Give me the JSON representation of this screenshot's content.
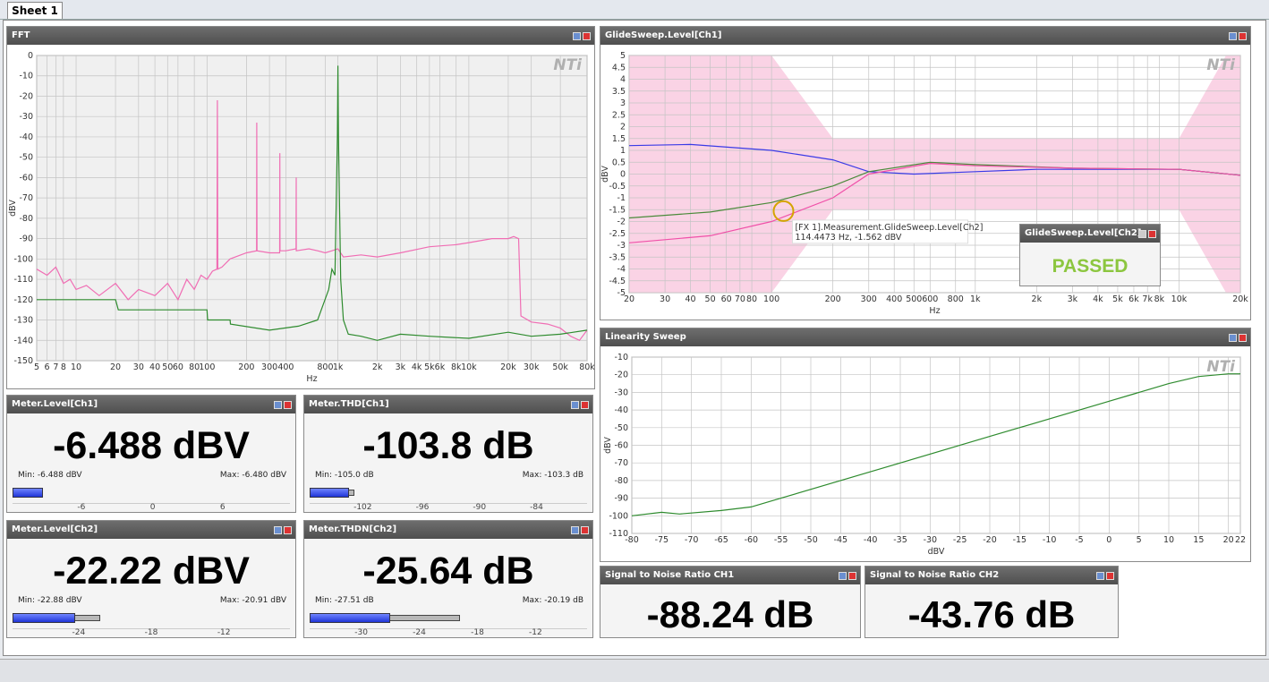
{
  "tab": "Sheet 1",
  "logo": "NTi",
  "fft": {
    "title": "FFT",
    "xlabel": "Hz",
    "ylabel": "dBV",
    "xlog": true,
    "xlim": [
      5,
      80000
    ],
    "ylim": [
      -150,
      0
    ],
    "xticks": [
      5,
      6,
      7,
      8,
      10,
      20,
      30,
      40,
      50,
      60,
      80,
      100,
      200,
      300,
      400,
      800,
      {
        "value": 1000,
        "label": "1k"
      },
      {
        "value": 2000,
        "label": "2k"
      },
      {
        "value": 3000,
        "label": "3k"
      },
      {
        "value": 4000,
        "label": "4k"
      },
      {
        "value": 5000,
        "label": "5k"
      },
      {
        "value": 6000,
        "label": "6k"
      },
      {
        "value": 8000,
        "label": "8k"
      },
      {
        "value": 10000,
        "label": "10k"
      },
      {
        "value": 20000,
        "label": "20k"
      },
      {
        "value": 30000,
        "label": "30k"
      },
      {
        "value": 50000,
        "label": "50k"
      },
      {
        "value": 80000,
        "label": "80k"
      }
    ],
    "yticks": [
      0,
      -10,
      -20,
      -30,
      -40,
      -50,
      -60,
      -70,
      -80,
      -90,
      -100,
      -110,
      -120,
      -130,
      -140,
      -150
    ],
    "series": [
      {
        "color": "#f06eb4",
        "x": [
          5,
          6,
          7,
          8,
          9,
          10,
          12,
          15,
          20,
          25,
          30,
          40,
          50,
          60,
          70,
          80,
          90,
          100,
          110,
          119,
          120,
          121,
          130,
          150,
          200,
          239,
          240,
          241,
          300,
          359,
          360,
          361,
          400,
          479,
          480,
          481,
          600,
          700,
          800,
          900,
          1000,
          1100,
          1500,
          2000,
          3000,
          5000,
          8000,
          10000,
          15000,
          20000,
          22000,
          24000,
          25000,
          30000,
          40000,
          50000,
          60000,
          70000,
          80000
        ],
        "y": [
          -105,
          -108,
          -104,
          -112,
          -110,
          -115,
          -113,
          -118,
          -112,
          -120,
          -115,
          -118,
          -112,
          -120,
          -110,
          -115,
          -108,
          -110,
          -106,
          -105,
          -22,
          -105,
          -104,
          -100,
          -97,
          -96,
          -33,
          -96,
          -97,
          -97,
          -48,
          -96,
          -96,
          -95,
          -60,
          -96,
          -95,
          -96,
          -97,
          -96,
          -95,
          -99,
          -98,
          -99,
          -97,
          -94,
          -93,
          -92,
          -90,
          -90,
          -89,
          -90,
          -128,
          -131,
          -132,
          -134,
          -138,
          -140,
          -135
        ]
      },
      {
        "color": "#2e8b2e",
        "x": [
          5,
          20,
          21,
          100,
          101,
          150,
          151,
          300,
          500,
          700,
          850,
          900,
          950,
          990,
          1000,
          1010,
          1050,
          1100,
          1200,
          1500,
          2000,
          3000,
          5000,
          10000,
          20000,
          30000,
          50000,
          80000
        ],
        "y": [
          -120,
          -120,
          -125,
          -125,
          -130,
          -130,
          -132,
          -135,
          -133,
          -130,
          -115,
          -105,
          -108,
          -40,
          -5,
          -40,
          -110,
          -130,
          -137,
          -138,
          -140,
          -137,
          -138,
          -139,
          -136,
          -138,
          -137,
          -135
        ]
      }
    ]
  },
  "glide": {
    "title": "GlideSweep.Level[Ch1]",
    "xlabel": "Hz",
    "ylabel": "dBV",
    "xlog": true,
    "xlim": [
      20,
      20000
    ],
    "ylim": [
      -5,
      5
    ],
    "xticks": [
      20,
      30,
      40,
      50,
      60,
      70,
      80,
      100,
      200,
      300,
      400,
      500,
      600,
      800,
      {
        "value": 1000,
        "label": "1k"
      },
      {
        "value": 2000,
        "label": "2k"
      },
      {
        "value": 3000,
        "label": "3k"
      },
      {
        "value": 4000,
        "label": "4k"
      },
      {
        "value": 5000,
        "label": "5k"
      },
      {
        "value": 6000,
        "label": "6k"
      },
      {
        "value": 7000,
        "label": "7k"
      },
      {
        "value": 8000,
        "label": "8k"
      },
      {
        "value": 10000,
        "label": "10k"
      },
      {
        "value": 20000,
        "label": "20k"
      }
    ],
    "yticks": [
      5,
      4.5,
      4,
      3.5,
      3,
      2.5,
      2,
      1.5,
      1,
      0.5,
      0,
      -0.5,
      -1,
      -1.5,
      -2,
      -2.5,
      -3,
      -3.5,
      -4,
      -4.5,
      -5
    ],
    "limit": {
      "color": "#f9c8df",
      "x": [
        20,
        100,
        200,
        10000,
        17000,
        20000
      ],
      "upper": [
        5,
        5,
        1.5,
        1.5,
        5,
        5
      ],
      "lower": [
        -5,
        -5,
        -1.5,
        -1.5,
        -5,
        -5
      ]
    },
    "series": [
      {
        "color": "#3a3ae6",
        "x": [
          20,
          40,
          100,
          200,
          300,
          500,
          1000,
          2000,
          10000,
          20000
        ],
        "y": [
          1.2,
          1.25,
          1.0,
          0.6,
          0.1,
          0.0,
          0.1,
          0.2,
          0.2,
          -0.05
        ]
      },
      {
        "color": "#4a8a3a",
        "x": [
          20,
          50,
          100,
          200,
          300,
          600,
          1000,
          3000,
          10000,
          20000
        ],
        "y": [
          -1.85,
          -1.6,
          -1.2,
          -0.5,
          0.1,
          0.5,
          0.4,
          0.25,
          0.2,
          -0.05
        ]
      },
      {
        "color": "#f050a8",
        "x": [
          20,
          50,
          100,
          200,
          300,
          600,
          1000,
          3000,
          10000,
          20000
        ],
        "y": [
          -2.9,
          -2.6,
          -2.0,
          -1.0,
          0.0,
          0.45,
          0.35,
          0.25,
          0.2,
          -0.05
        ]
      }
    ],
    "cursor": {
      "x": 114.4473,
      "y": -1.562,
      "label": "[FX 1].Measurement.GlideSweep.Level[Ch2]",
      "readout": "114.4473 Hz, -1.562 dBV"
    },
    "status": {
      "title": "GlideSweep.Level[Ch2]",
      "result": "PASSED"
    }
  },
  "linearity": {
    "title": "Linearity Sweep",
    "xlabel": "dBV",
    "ylabel": "dBV",
    "xlog": false,
    "xlim": [
      -80,
      22
    ],
    "ylim": [
      -110,
      -10
    ],
    "xticks": [
      -80,
      -75,
      -70,
      -65,
      -60,
      -55,
      -50,
      -45,
      -40,
      -35,
      -30,
      -25,
      -20,
      -15,
      -10,
      -5,
      0,
      5,
      10,
      15,
      20,
      22
    ],
    "yticks": [
      -10,
      -20,
      -30,
      -40,
      -50,
      -60,
      -70,
      -80,
      -90,
      -100,
      -110
    ],
    "series": [
      {
        "color": "#2e8b2e",
        "x": [
          -80,
          -75,
          -72,
          -65,
          -60,
          -55,
          -40,
          -20,
          0,
          10,
          15,
          20,
          22
        ],
        "y": [
          -100,
          -98,
          -99,
          -97,
          -95,
          -90,
          -75,
          -55,
          -35,
          -25,
          -21,
          -19.5,
          -19.5
        ]
      }
    ]
  },
  "meters": [
    {
      "title": "Meter.Level[Ch1]",
      "value": "-6.488 dBV",
      "min": "Min: -6.488 dBV",
      "max": "Max: -6.480 dBV",
      "scale": [
        "-6",
        "0",
        "6"
      ]
    },
    {
      "title": "Meter.THD[Ch1]",
      "value": "-103.8 dB",
      "min": "Min: -105.0 dB",
      "max": "Max: -103.3 dB",
      "scale": [
        "-102",
        "-96",
        "-90",
        "-84"
      ]
    },
    {
      "title": "Meter.Level[Ch2]",
      "value": "-22.22 dBV",
      "min": "Min: -22.88 dBV",
      "max": "Max: -20.91 dBV",
      "scale": [
        "-24",
        "-18",
        "-12"
      ]
    },
    {
      "title": "Meter.THDN[Ch2]",
      "value": "-25.64 dB",
      "min": "Min: -27.51 dB",
      "max": "Max: -20.19 dB",
      "scale": [
        "-30",
        "-24",
        "-18",
        "-12"
      ]
    }
  ],
  "snr": [
    {
      "title": "Signal to Noise Ratio CH1",
      "value": "-88.24 dB"
    },
    {
      "title": "Signal to Noise Ratio CH2",
      "value": "-43.76 dB"
    }
  ]
}
